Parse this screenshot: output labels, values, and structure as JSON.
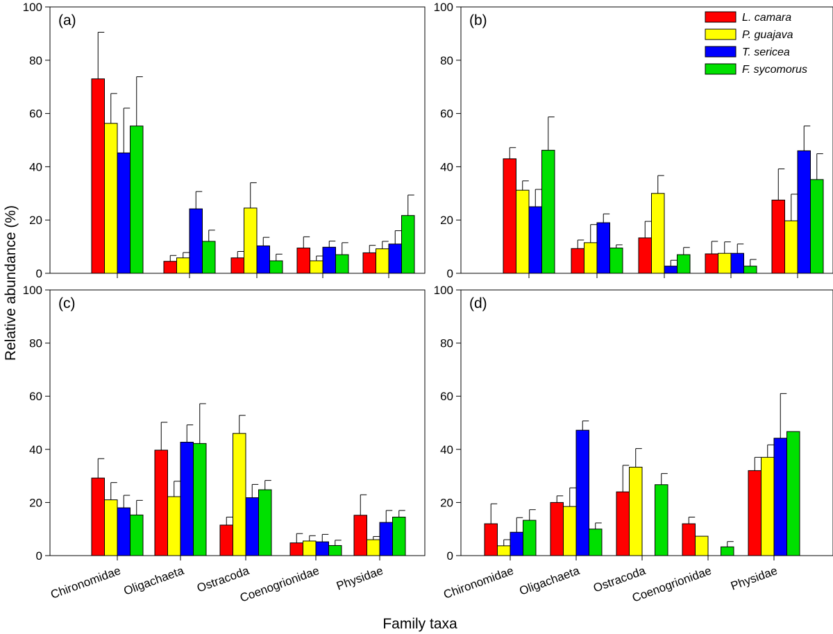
{
  "figure": {
    "ylabel": "Relative abundance (%)",
    "xlabel": "Family taxa"
  },
  "legend": {
    "position": "top-right of panel (b)",
    "entries": [
      {
        "name": "L. camara",
        "color": "#ff0000"
      },
      {
        "name": "P. guajava",
        "color": "#ffff00"
      },
      {
        "name": "T. sericea",
        "color": "#0000ff"
      },
      {
        "name": "F. sycomorus",
        "color": "#00e000"
      }
    ]
  },
  "chart_data": [
    {
      "type": "bar",
      "panel_label": "(a)",
      "categories": [
        "Chironomidae",
        "Oligachaeta",
        "Ostracoda",
        "Coenogrionidae",
        "Physidae"
      ],
      "ylim": [
        0,
        100
      ],
      "yticks": [
        0,
        20,
        40,
        60,
        80,
        100
      ],
      "show_category_labels": false,
      "series": [
        {
          "name": "L. camara",
          "values": [
            73,
            4.5,
            5.8,
            9.5,
            7.7
          ],
          "errors": [
            17.5,
            2.2,
            2.4,
            4.2,
            2.8
          ]
        },
        {
          "name": "P. guajava",
          "values": [
            56.3,
            5.8,
            24.5,
            4.7,
            9.2
          ],
          "errors": [
            11.2,
            2,
            9.5,
            1.8,
            2.8
          ]
        },
        {
          "name": "T. sericea",
          "values": [
            45.2,
            24.2,
            10.3,
            9.8,
            11
          ],
          "errors": [
            16.8,
            6.5,
            3.2,
            2.3,
            5
          ]
        },
        {
          "name": "F. sycomorus",
          "values": [
            55.3,
            12,
            4.7,
            7,
            21.7
          ],
          "errors": [
            18.5,
            4.2,
            2.5,
            4.5,
            7.7
          ]
        }
      ]
    },
    {
      "type": "bar",
      "panel_label": "(b)",
      "categories": [
        "Chironomidae",
        "Oligachaeta",
        "Ostracoda",
        "Coenogrionidae",
        "Physidae"
      ],
      "ylim": [
        0,
        100
      ],
      "yticks": [
        0,
        20,
        40,
        60,
        80,
        100
      ],
      "show_category_labels": false,
      "series": [
        {
          "name": "L. camara",
          "values": [
            43,
            9.3,
            13.3,
            7.3,
            27.5
          ],
          "errors": [
            4.2,
            3.2,
            6.2,
            4.7,
            11.7
          ]
        },
        {
          "name": "P. guajava",
          "values": [
            31.2,
            11.5,
            30,
            7.5,
            19.7
          ],
          "errors": [
            3.5,
            6.8,
            6.7,
            4.3,
            10
          ]
        },
        {
          "name": "T. sericea",
          "values": [
            25,
            19,
            2.7,
            7.5,
            46
          ],
          "errors": [
            6.5,
            3.3,
            2.2,
            3.5,
            9.3
          ]
        },
        {
          "name": "F. sycomorus",
          "values": [
            46.2,
            9.5,
            7,
            2.7,
            35.2
          ],
          "errors": [
            12.5,
            1.2,
            2.7,
            2.5,
            9.7
          ]
        }
      ]
    },
    {
      "type": "bar",
      "panel_label": "(c)",
      "categories": [
        "Chironomidae",
        "Oligachaeta",
        "Ostracoda",
        "Coenogrionidae",
        "Physidae"
      ],
      "ylim": [
        0,
        100
      ],
      "yticks": [
        0,
        20,
        40,
        60,
        80,
        100
      ],
      "show_category_labels": true,
      "series": [
        {
          "name": "L. camara",
          "values": [
            29.2,
            39.7,
            11.5,
            4.8,
            15.2
          ],
          "errors": [
            7.3,
            10.5,
            3,
            3.5,
            7.7
          ]
        },
        {
          "name": "P. guajava",
          "values": [
            21,
            22.2,
            46,
            5.5,
            6
          ],
          "errors": [
            6.5,
            5.8,
            6.8,
            2,
            1.2
          ]
        },
        {
          "name": "T. sericea",
          "values": [
            18,
            42.7,
            21.8,
            5.2,
            12.5
          ],
          "errors": [
            4.7,
            6.5,
            5,
            2.8,
            4.5
          ]
        },
        {
          "name": "F. sycomorus",
          "values": [
            15.3,
            42.2,
            24.8,
            3.8,
            14.5
          ],
          "errors": [
            5.5,
            15,
            3.5,
            2,
            2.5
          ]
        }
      ]
    },
    {
      "type": "bar",
      "panel_label": "(d)",
      "categories": [
        "Chironomidae",
        "Oligachaeta",
        "Ostracoda",
        "Coenogrionidae",
        "Physidae"
      ],
      "ylim": [
        0,
        100
      ],
      "yticks": [
        0,
        20,
        40,
        60,
        80,
        100
      ],
      "show_category_labels": true,
      "series": [
        {
          "name": "L. camara",
          "values": [
            12,
            20,
            24,
            12,
            32
          ],
          "errors": [
            7.5,
            2.5,
            10,
            2.5,
            5
          ]
        },
        {
          "name": "P. guajava",
          "values": [
            3.7,
            18.5,
            33.3,
            7.3,
            37
          ],
          "errors": [
            2.3,
            7,
            7,
            0,
            4.7
          ]
        },
        {
          "name": "T. sericea",
          "values": [
            8.8,
            47.2,
            0,
            0,
            44.2
          ],
          "errors": [
            5.5,
            3.5,
            0,
            0,
            16.8
          ]
        },
        {
          "name": "F. sycomorus",
          "values": [
            13.3,
            10,
            26.7,
            3.3,
            46.7
          ],
          "errors": [
            4,
            2.3,
            4.2,
            2,
            0
          ]
        }
      ]
    }
  ]
}
